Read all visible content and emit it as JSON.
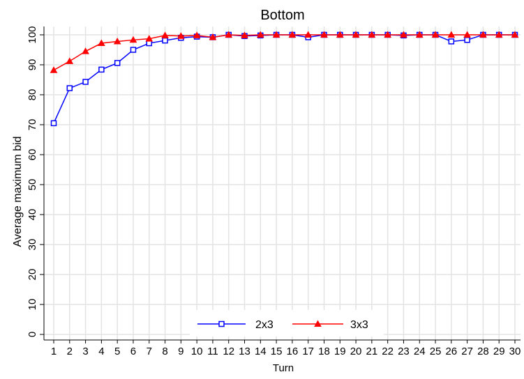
{
  "chart_data": {
    "type": "line",
    "title": "Bottom",
    "xlabel": "Turn",
    "ylabel": "Average maximum bid",
    "x": [
      1,
      2,
      3,
      4,
      5,
      6,
      7,
      8,
      9,
      10,
      11,
      12,
      13,
      14,
      15,
      16,
      17,
      18,
      19,
      20,
      21,
      22,
      23,
      24,
      25,
      26,
      27,
      28,
      29,
      30
    ],
    "xlim": [
      1,
      30
    ],
    "ylim": [
      0,
      100
    ],
    "yticks": [
      0,
      10,
      20,
      30,
      40,
      50,
      60,
      70,
      80,
      90,
      100
    ],
    "grid": true,
    "legend_position": "bottom",
    "series": [
      {
        "name": "2x3",
        "color": "#0000ff",
        "marker": "square",
        "values": [
          70.5,
          82.2,
          84.3,
          88.4,
          90.6,
          95.0,
          97.2,
          98.1,
          99.0,
          99.4,
          99.2,
          100,
          99.6,
          99.8,
          100,
          100,
          99.2,
          100,
          100,
          100,
          100,
          100,
          99.8,
          100,
          100,
          97.8,
          98.3,
          100,
          100,
          100
        ]
      },
      {
        "name": "3x3",
        "color": "#ff0000",
        "marker": "triangle",
        "values": [
          88.2,
          91.2,
          94.5,
          97.2,
          97.8,
          98.3,
          98.7,
          99.8,
          99.6,
          99.8,
          99.2,
          100,
          99.8,
          100,
          100,
          100,
          100,
          100,
          100,
          100,
          100,
          100,
          100,
          100,
          100,
          100,
          100,
          100,
          100,
          100
        ]
      }
    ]
  }
}
